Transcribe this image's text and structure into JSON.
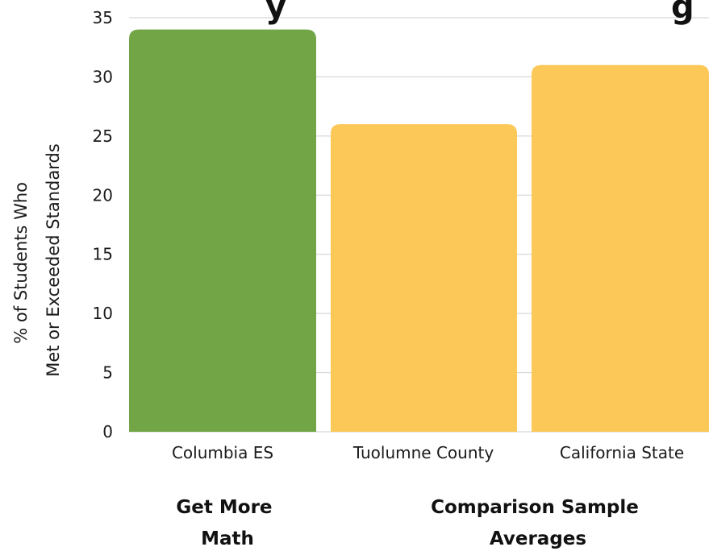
{
  "chart_data": {
    "type": "bar",
    "title_visible_fragment": "y",
    "title_tail_fragment": "g",
    "categories": [
      "Columbia ES",
      "Tuolumne County",
      "California State"
    ],
    "values": [
      34,
      26,
      31
    ],
    "bar_colors": [
      "#72A546",
      "#FCC857",
      "#FCC857"
    ],
    "ylabel_lines": [
      "% of Students  Who",
      "Met or Exceeded  Standards"
    ],
    "xlabel": "",
    "ylim": [
      0,
      35
    ],
    "yticks": [
      0,
      5,
      10,
      15,
      20,
      25,
      30,
      35
    ],
    "grid": true,
    "grid_color": "#CFCFCF",
    "groups": [
      {
        "lines": [
          "Get More",
          "Math"
        ]
      },
      {
        "lines": [
          "Comparison Sample",
          "Averages"
        ]
      }
    ]
  }
}
